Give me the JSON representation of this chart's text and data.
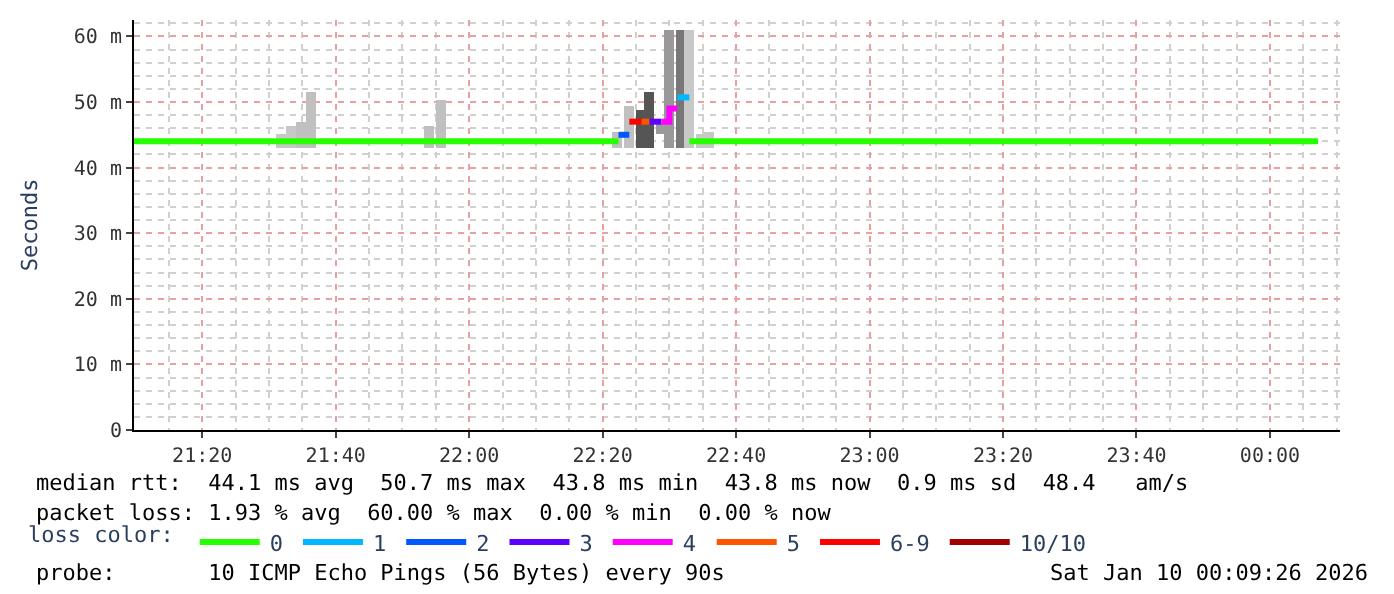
{
  "chart_data": {
    "type": "step",
    "ylabel": "Seconds",
    "xlim": [
      21.163,
      24.175
    ],
    "xticks": [
      {
        "value": 21.3333,
        "label": "21:20"
      },
      {
        "value": 21.6667,
        "label": "21:40"
      },
      {
        "value": 22.0,
        "label": "22:00"
      },
      {
        "value": 22.3333,
        "label": "22:20"
      },
      {
        "value": 22.6667,
        "label": "22:40"
      },
      {
        "value": 23.0,
        "label": "23:00"
      },
      {
        "value": 23.3333,
        "label": "23:20"
      },
      {
        "value": 23.6667,
        "label": "23:40"
      },
      {
        "value": 24.0,
        "label": "00:00"
      }
    ],
    "ylim": [
      0,
      62.5
    ],
    "yticks": [
      0,
      {
        "value": 10,
        "label": "10 m"
      },
      {
        "value": 20,
        "label": "20 m"
      },
      {
        "value": 30,
        "label": "30 m"
      },
      {
        "value": 40,
        "label": "40 m"
      },
      {
        "value": 50,
        "label": "50 m"
      },
      {
        "value": 60,
        "label": "60 m"
      }
    ],
    "grid": true,
    "legend": "bottom left",
    "legend_title": "loss color:",
    "series": [
      {
        "type": "bar",
        "x": [
          21.53,
          21.555,
          21.58,
          21.605,
          21.9,
          21.93,
          22.37,
          22.4,
          22.43,
          22.45,
          22.48,
          22.5,
          22.53,
          22.55,
          22.58,
          22.6
        ],
        "base": [
          43,
          43,
          43,
          43,
          43,
          43,
          43,
          43,
          43,
          43,
          45,
          43,
          43,
          43,
          43,
          43
        ],
        "values": [
          2,
          3.3,
          4,
          8.5,
          3.3,
          7.3,
          2.5,
          6.5,
          5.8,
          8.5,
          1.8,
          18,
          18,
          18,
          2,
          2.5
        ],
        "colors": [
          "#c8c8c8",
          "#c8c8c8",
          "#c0c0c0",
          "#c0c0c0",
          "#c0c0c0",
          "#c0c0c0",
          "#c0c0c0",
          "#c0c0c0",
          "#555555",
          "#555555",
          "#999999",
          "#999999",
          "#777777",
          "#c8c8c8",
          "#c8c8c8",
          "#c8c8c8"
        ]
      },
      {
        "name": "0",
        "color": "#26ff00",
        "x": [
          21.163,
          22.373,
          22.4,
          22.55,
          24.12
        ],
        "values": [
          44,
          44,
          null,
          44,
          44
        ]
      },
      {
        "name": "1",
        "color": "#00b8ff",
        "x": [
          22.52,
          22.55
        ],
        "values": [
          50.7,
          50.7
        ]
      },
      {
        "name": "2",
        "color": "#0059ff",
        "x": [
          22.373,
          22.4
        ],
        "values": [
          45,
          45
        ]
      },
      {
        "name": "3",
        "color": "#5e00ff",
        "x": [
          22.45,
          22.48
        ],
        "values": [
          47,
          47
        ]
      },
      {
        "name": "4",
        "color": "#ff00ff",
        "x": [
          22.48,
          22.5,
          22.52
        ],
        "values": [
          47,
          49,
          49
        ]
      },
      {
        "name": "5",
        "color": "#ff5500",
        "x": [
          22.43,
          22.45
        ],
        "values": [
          47,
          47
        ]
      },
      {
        "name": "6-9",
        "color": "#ff0000",
        "x": [
          22.4,
          22.43
        ],
        "values": [
          47,
          47
        ]
      },
      {
        "name": "10/10",
        "color": "#a10000"
      }
    ],
    "annotations": [
      "median rtt:  44.1 ms avg  50.7 ms max  43.8 ms min  43.8 ms now  0.9 ms sd  48.4   am/s",
      "packet loss: 1.93 % avg  60.00 % max  0.00 % min  0.00 % now",
      "probe:       10 ICMP Echo Pings (56 Bytes) every 90s",
      "Sat Jan 10 00:09:26 2026"
    ]
  }
}
